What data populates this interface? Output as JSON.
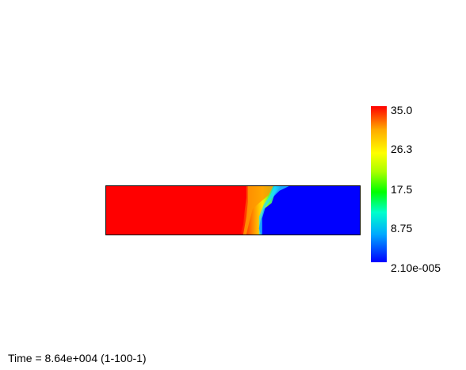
{
  "chart_data": {
    "type": "heatmap",
    "colorbar": {
      "labels": [
        "35.0",
        "26.3",
        "17.5",
        "8.75",
        "2.10e-005"
      ],
      "min": 2.1e-05,
      "max": 35.0,
      "colors": [
        "#0000ff",
        "#00aaff",
        "#00ffcc",
        "#00ff00",
        "#aaff00",
        "#ffff00",
        "#ffaa00",
        "#ff0000"
      ]
    },
    "field": {
      "high_value": 35.0,
      "low_value": 2.1e-05,
      "front_position_fraction": [
        0.54,
        0.62
      ]
    },
    "time_label": "Time = 8.64e+004 (1-100-1)"
  }
}
